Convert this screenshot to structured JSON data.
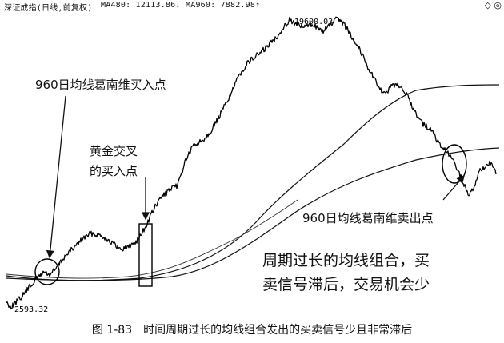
{
  "header": {
    "index_name": "深证成指(日线,前复权)",
    "ma480_label": "MA480: 12113.86↓",
    "ma960_label": "MA960: 7882.98↑",
    "corner_symbol": "◇ ◎"
  },
  "chart_data": {
    "type": "line",
    "series": [
      {
        "values": []
      },
      {
        "name": "MA480",
        "values": []
      },
      {
        "name": "MA960",
        "values": []
      }
    ],
    "price_labels": {
      "high": "19600.03",
      "low": "2593.32"
    },
    "annotations": {
      "buy_960": "960日均线葛南维买入点",
      "golden_cross": [
        "黄金交叉",
        "的买入点"
      ],
      "sell_960": "960日均线葛南维卖出点",
      "comment": [
        "周期过长的均线组合，买",
        "卖信号滞后，交易机会少"
      ]
    },
    "caption": "图 1-83　时间周期过长的均线组合发出的买卖信号少且非常滞后",
    "grid": false
  }
}
